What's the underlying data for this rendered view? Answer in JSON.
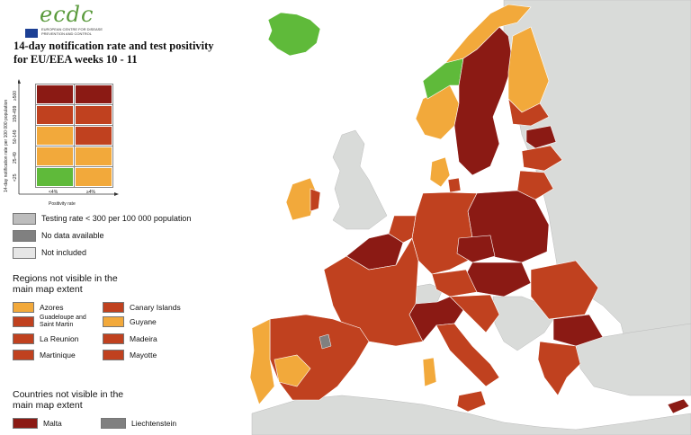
{
  "logo": {
    "text": "ecdc",
    "subtitle": "EUROPEAN CENTRE FOR DISEASE PREVENTION AND CONTROL"
  },
  "title": "14-day notification rate and test positivity for EU/EEA weeks 10 - 11",
  "matrix": {
    "y_axis_label": "14-day notification rate per 100 000 population",
    "x_axis_label": "Positivity rate",
    "rows": [
      "≥500",
      "150-499",
      "50-149",
      "25-49",
      "<25"
    ],
    "cols": [
      "<4%",
      "≥4%"
    ],
    "colors": [
      [
        "#8b1a14",
        "#8b1a14"
      ],
      [
        "#c0411f",
        "#c0411f"
      ],
      [
        "#f2a93b",
        "#c0411f"
      ],
      [
        "#f2a93b",
        "#f2a93b"
      ],
      [
        "#5fba3a",
        "#f2a93b"
      ]
    ]
  },
  "legend": [
    {
      "label": "Testing rate < 300 per 100 000 population",
      "color": "#bdbdbd"
    },
    {
      "label": "No data available",
      "color": "#808080"
    },
    {
      "label": "Not included",
      "color": "#e6e6e6"
    }
  ],
  "regions": {
    "heading": "Regions not visible in the main map extent",
    "items": [
      {
        "label": "Azores",
        "color": "#f2a93b"
      },
      {
        "label": "Canary Islands",
        "color": "#c0411f"
      },
      {
        "label": "Guadeloupe and Saint Martin",
        "color": "#c0411f"
      },
      {
        "label": "Guyane",
        "color": "#f2a93b"
      },
      {
        "label": "La Reunion",
        "color": "#c0411f"
      },
      {
        "label": "Madeira",
        "color": "#c0411f"
      },
      {
        "label": "Martinique",
        "color": "#c0411f"
      },
      {
        "label": "Mayotte",
        "color": "#c0411f"
      }
    ]
  },
  "countries": {
    "heading": "Countries not visible in the main map extent",
    "items": [
      {
        "label": "Malta",
        "color": "#8b1a14"
      },
      {
        "label": "Liechtenstein",
        "color": "#808080"
      }
    ]
  },
  "map_colors": {
    "sea": "#ffffff",
    "non_eu": "#d9dbd9",
    "dark_red": "#8b1a14",
    "red": "#c0411f",
    "orange": "#f2a93b",
    "green": "#5fba3a",
    "grey": "#808080"
  }
}
